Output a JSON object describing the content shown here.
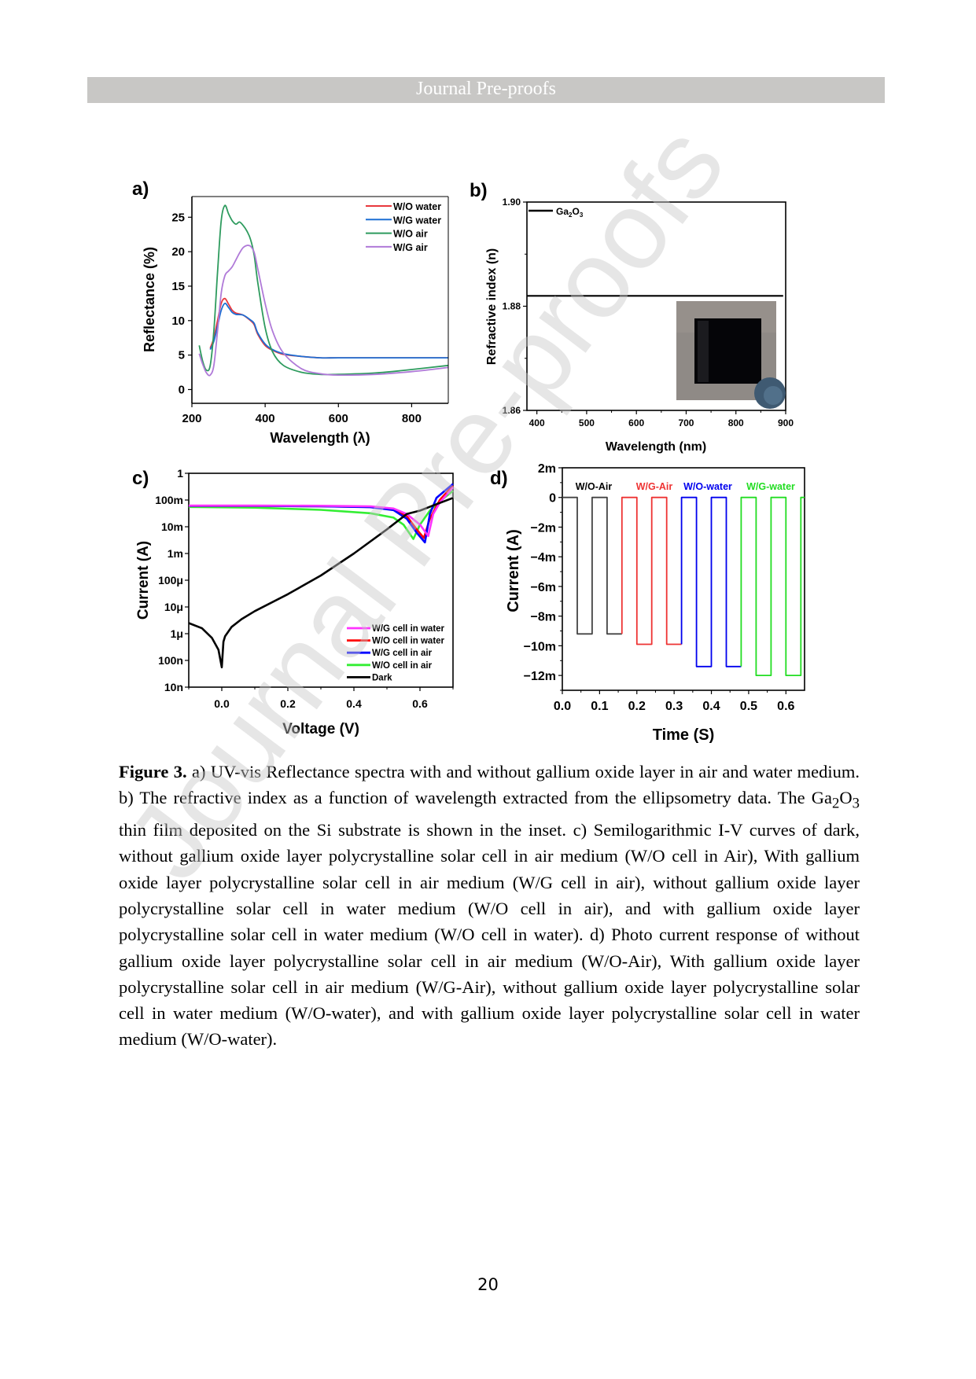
{
  "header": {
    "title": "Journal Pre-proofs"
  },
  "watermark": "Journal Pre-proofs",
  "page_number": "20",
  "caption": {
    "label": "Figure 3.",
    "text_1": " a) UV-vis Reflectance spectra with and without gallium oxide layer in air and water medium. b) The refractive index as a function of wavelength extracted from the ellipsometry data. The Ga",
    "sub_2": "2",
    "text_2": "O",
    "sub_3": "3",
    "text_3": " thin film deposited on the Si substrate is shown in the inset. c) Semilogarithmic I-V curves of dark, without gallium oxide layer polycrystalline solar cell in air medium (W/O cell in Air), With gallium oxide layer polycrystalline solar cell in air medium (W/G cell in air), without gallium oxide layer polycrystalline solar cell in water medium (W/O cell in air), and with gallium oxide layer polycrystalline solar cell in water medium (W/O cell in water). d) Photo current response of without gallium oxide layer polycrystalline solar cell in air medium (W/O-Air), With gallium oxide layer polycrystalline solar cell in air medium (W/G-Air), without gallium oxide layer polycrystalline solar cell in water medium (W/O-water), and with gallium oxide layer polycrystalline solar cell in water medium (W/O-water)."
  },
  "chart_data": [
    {
      "panel": "a)",
      "type": "line",
      "title": "",
      "xlabel": "Wavelength (λ)",
      "ylabel": "Reflectance (%)",
      "xlim": [
        200,
        900
      ],
      "ylim": [
        -2,
        28
      ],
      "xticks": [
        200,
        400,
        600,
        800
      ],
      "yticks": [
        0,
        5,
        10,
        15,
        20,
        25
      ],
      "legend_position": "top-right",
      "series": [
        {
          "name": "W/O water",
          "color": "#e8383d",
          "x": [
            250,
            260,
            270,
            280,
            290,
            300,
            310,
            320,
            340,
            360,
            370,
            380,
            400,
            420,
            450,
            500,
            550,
            600,
            700,
            800,
            900
          ],
          "y": [
            6.0,
            7.5,
            10.0,
            12.5,
            13.2,
            12.4,
            11.5,
            11.1,
            10.8,
            10.0,
            9.4,
            8.0,
            6.4,
            5.7,
            5.1,
            4.8,
            4.6,
            4.6,
            4.6,
            4.6,
            4.6
          ]
        },
        {
          "name": "W/G water",
          "color": "#1d6fd4",
          "x": [
            250,
            260,
            270,
            280,
            290,
            300,
            310,
            320,
            340,
            360,
            370,
            380,
            400,
            420,
            450,
            500,
            550,
            600,
            700,
            800,
            900
          ],
          "y": [
            5.8,
            7.0,
            9.2,
            11.5,
            12.5,
            11.9,
            11.2,
            10.9,
            10.8,
            10.1,
            9.6,
            8.2,
            6.6,
            5.8,
            5.2,
            4.8,
            4.6,
            4.6,
            4.6,
            4.6,
            4.6
          ]
        },
        {
          "name": "W/O  air",
          "color": "#2e9b5e",
          "x": [
            220,
            230,
            240,
            250,
            260,
            270,
            280,
            290,
            300,
            310,
            320,
            330,
            340,
            350,
            360,
            370,
            380,
            400,
            420,
            450,
            500,
            550,
            600,
            700,
            800,
            900
          ],
          "y": [
            6.4,
            4.0,
            2.8,
            3.5,
            8.5,
            17.0,
            24.5,
            26.7,
            25.5,
            24.5,
            24.0,
            24.3,
            23.8,
            23.0,
            21.8,
            19.5,
            15.5,
            9.0,
            5.5,
            3.5,
            2.5,
            2.2,
            2.2,
            2.4,
            2.9,
            3.5
          ]
        },
        {
          "name": "W/G  air",
          "color": "#b07ad8",
          "x": [
            220,
            230,
            240,
            250,
            260,
            270,
            280,
            290,
            300,
            310,
            320,
            330,
            340,
            350,
            360,
            370,
            380,
            400,
            420,
            450,
            500,
            550,
            600,
            700,
            800,
            900
          ],
          "y": [
            5.2,
            3.6,
            2.4,
            2.1,
            3.5,
            8.5,
            14.0,
            16.5,
            17.2,
            17.8,
            18.8,
            19.8,
            20.6,
            20.9,
            20.8,
            19.9,
            17.5,
            12.5,
            8.5,
            5.3,
            3.0,
            2.3,
            2.1,
            2.2,
            2.6,
            3.2
          ]
        }
      ]
    },
    {
      "panel": "b)",
      "type": "line",
      "xlabel": "Wavelength (nm)",
      "ylabel": "Refractive index (n)",
      "xlim": [
        380,
        900
      ],
      "ylim": [
        1.86,
        1.9
      ],
      "xticks": [
        400,
        500,
        600,
        700,
        800,
        900
      ],
      "yticks": [
        1.86,
        1.88,
        1.9
      ],
      "legend_position": "top-left",
      "series": [
        {
          "name": "Ga2O3",
          "name_main": "Ga",
          "name_sub1": "2",
          "name_mid": "O",
          "name_sub2": "3",
          "color": "#000000",
          "x": [
            380,
            900
          ],
          "y": [
            1.882,
            1.882
          ]
        }
      ],
      "inset": "Ga2O3 thin film on Si substrate photo"
    },
    {
      "panel": "c)",
      "type": "line",
      "yscale": "log",
      "xlabel": "Voltage (V)",
      "ylabel": "Current (A)",
      "xlim": [
        -0.1,
        0.7
      ],
      "ylim": [
        1e-08,
        1
      ],
      "xticks": [
        0.0,
        0.2,
        0.4,
        0.6
      ],
      "xtick_labels": [
        "0.0",
        "0.2",
        "0.4",
        "0.6"
      ],
      "yticks": [
        1e-08,
        1e-07,
        1e-06,
        1e-05,
        0.0001,
        0.001,
        0.01,
        0.1,
        1
      ],
      "ytick_labels": [
        "10n",
        "100n",
        "1μ",
        "10μ",
        "100μ",
        "1m",
        "10m",
        "100m",
        "1"
      ],
      "legend_position": "bottom-right",
      "series": [
        {
          "name": "W/G cell in water",
          "color": "#ff33ff",
          "x": [
            -0.1,
            0.1,
            0.3,
            0.45,
            0.52,
            0.56,
            0.6,
            0.625,
            0.64,
            0.66,
            0.7
          ],
          "y": [
            0.062,
            0.062,
            0.061,
            0.058,
            0.048,
            0.03,
            0.012,
            0.0045,
            0.03,
            0.08,
            0.3
          ]
        },
        {
          "name": "W/O cell in water",
          "color": "#ff0000",
          "x": [
            -0.1,
            0.1,
            0.3,
            0.45,
            0.52,
            0.56,
            0.59,
            0.612,
            0.63,
            0.66,
            0.7
          ],
          "y": [
            0.06,
            0.06,
            0.058,
            0.055,
            0.045,
            0.025,
            0.008,
            0.0038,
            0.02,
            0.1,
            0.35
          ]
        },
        {
          "name": "W/G cell in air",
          "color": "#0000ff",
          "x": [
            -0.1,
            0.1,
            0.3,
            0.45,
            0.52,
            0.56,
            0.59,
            0.615,
            0.63,
            0.65,
            0.7
          ],
          "y": [
            0.06,
            0.06,
            0.058,
            0.054,
            0.042,
            0.02,
            0.006,
            0.0026,
            0.03,
            0.12,
            0.4
          ]
        },
        {
          "name": "W/O cell in air",
          "color": "#33ee33",
          "x": [
            -0.1,
            0.1,
            0.3,
            0.45,
            0.52,
            0.55,
            0.58,
            0.6,
            0.63,
            0.66,
            0.7
          ],
          "y": [
            0.055,
            0.052,
            0.043,
            0.032,
            0.022,
            0.012,
            0.0035,
            0.012,
            0.04,
            0.09,
            0.22
          ]
        },
        {
          "name": "Dark",
          "color": "#000000",
          "x": [
            -0.1,
            -0.06,
            -0.03,
            -0.01,
            0.0,
            0.005,
            0.01,
            0.03,
            0.06,
            0.1,
            0.2,
            0.3,
            0.4,
            0.5,
            0.56,
            0.6,
            0.65,
            0.7
          ],
          "y": [
            2.5e-06,
            1.6e-06,
            7e-07,
            2.5e-07,
            5.5e-08,
            5e-07,
            8e-07,
            1.8e-06,
            3.5e-06,
            7e-06,
            3e-05,
            0.00015,
            0.001,
            0.008,
            0.03,
            0.04,
            0.07,
            0.12
          ]
        }
      ]
    },
    {
      "panel": "d)",
      "type": "line",
      "xlabel": "Time (S)",
      "ylabel": "Current (A)",
      "xlim": [
        0,
        0.65
      ],
      "ylim": [
        -0.013,
        0.002
      ],
      "xticks": [
        0.0,
        0.1,
        0.2,
        0.3,
        0.4,
        0.5,
        0.6
      ],
      "xtick_labels": [
        "0.0",
        "0.1",
        "0.2",
        "0.3",
        "0.4",
        "0.5",
        "0.6"
      ],
      "yticks": [
        0.002,
        0,
        -0.002,
        -0.004,
        -0.006,
        -0.008,
        -0.01,
        -0.012
      ],
      "ytick_labels": [
        "2m",
        "0",
        "−2m",
        "−4m",
        "−6m",
        "−8m",
        "−10m",
        "−12m"
      ],
      "legend_position": "top",
      "series": [
        {
          "name": "W/O-Air",
          "color": "#444444",
          "t_start": 0.0,
          "t_end": 0.16,
          "on_current": -0.0092,
          "x": [
            0,
            0.04,
            0.04,
            0.08,
            0.08,
            0.12,
            0.12,
            0.16
          ],
          "y": [
            0,
            0,
            -0.0092,
            -0.0092,
            0,
            0,
            -0.0092,
            -0.0092
          ]
        },
        {
          "name": "W/G-Air",
          "color": "#ee3333",
          "t_start": 0.16,
          "t_end": 0.32,
          "on_current": -0.0099,
          "x": [
            0.16,
            0.16,
            0.2,
            0.2,
            0.24,
            0.24,
            0.28,
            0.28,
            0.32
          ],
          "y": [
            -0.0092,
            0,
            0,
            -0.0099,
            -0.0099,
            0,
            0,
            -0.0099,
            -0.0099
          ]
        },
        {
          "name": "W/O-water",
          "color": "#0000ee",
          "t_start": 0.32,
          "t_end": 0.48,
          "on_current": -0.0114,
          "x": [
            0.32,
            0.32,
            0.36,
            0.36,
            0.4,
            0.4,
            0.44,
            0.44,
            0.48
          ],
          "y": [
            -0.0099,
            0,
            0,
            -0.0114,
            -0.0114,
            0,
            0,
            -0.0114,
            -0.0114
          ]
        },
        {
          "name": "W/G-water",
          "color": "#22dd22",
          "t_start": 0.48,
          "t_end": 0.65,
          "on_current": -0.012,
          "x": [
            0.48,
            0.48,
            0.52,
            0.52,
            0.56,
            0.56,
            0.6,
            0.6,
            0.64,
            0.64,
            0.65
          ],
          "y": [
            -0.0114,
            0,
            0,
            -0.012,
            -0.012,
            0,
            0,
            -0.012,
            -0.012,
            0,
            0
          ]
        }
      ]
    }
  ]
}
